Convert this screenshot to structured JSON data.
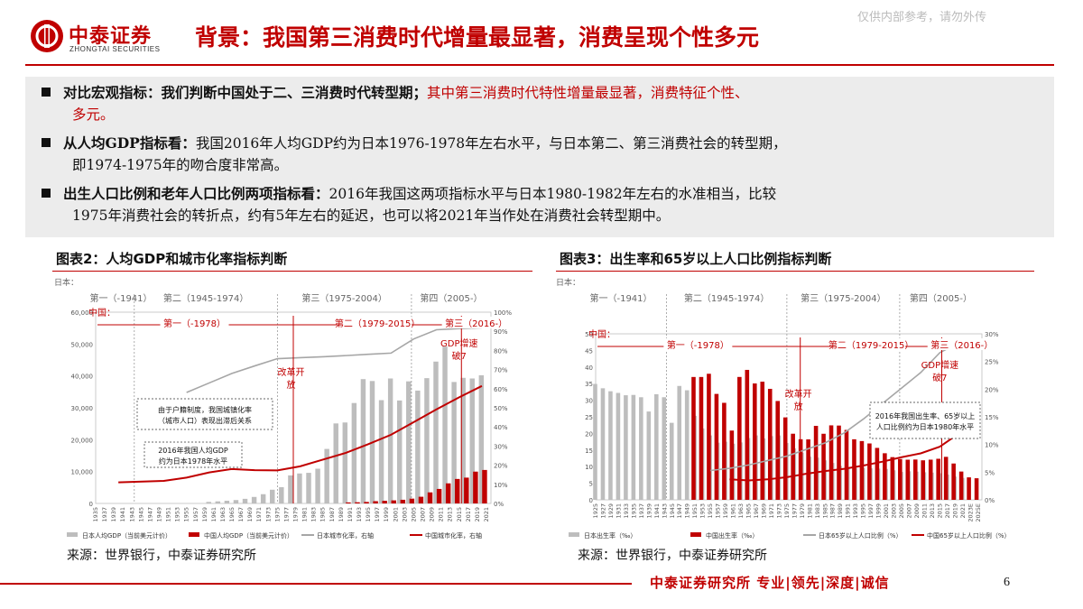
{
  "header": {
    "logo_cn": "中泰证券",
    "logo_en": "ZHONGTAI SECURITIES",
    "title": "背景：我国第三消费时代增量最显著，消费呈现个性多元",
    "watermark": "仅供内部参考，请勿外传"
  },
  "bullets": [
    {
      "bold": "对比宏观指标：我们判断中国处于二、三消费时代转型期；",
      "red": "其中第三消费时代特性增量最显著，消费特征个性、",
      "red2": "多元。"
    },
    {
      "bold": "从人均GDP指标看：",
      "text": "我国2016年人均GDP约为日本1976-1978年左右水平，与日本第二、第三消费社会的转型期，",
      "text2": "即1974-1975年的吻合度非常高。"
    },
    {
      "bold": "出生人口比例和老年人口比例两项指标看：",
      "text": "2016年我国这两项指标水平与日本1980-1982年左右的水准相当，比较",
      "text2": "1975年消费社会的转折点，约有5年左右的延迟，也可以将2021年当作处在消费社会转型期中。"
    }
  ],
  "chart_left_title": "图表2：人均GDP和城市化率指标判断",
  "chart_right_title": "图表3：出生率和65岁以上人口比例指标判断",
  "source_left": "来源：世界银行，中泰证券研究所",
  "source_right": "来源：世界银行，中泰证券研究所",
  "footer": {
    "text": "中泰证券研究所 专业|领先|深度|诚信",
    "page": "6"
  },
  "chart_data": [
    {
      "type": "bar",
      "title": "图表2：人均GDP和城市化率指标判断",
      "japan_label": "日本：",
      "china_label": "中国：",
      "japan_eras": [
        "第一（-1941）",
        "第二（1945-1974）",
        "第三（1975-2004）",
        "第四（2005-）"
      ],
      "china_eras": [
        "第一（-1978）",
        "第二（1979-2015）",
        "第三（2016-）"
      ],
      "annotations": [
        "改革开放",
        "GDP增速破7",
        "由于户籍制度，我国城镇化率（城市人口）表现出滞后关系",
        "2016年我国人均GDP约为日本1978年水平"
      ],
      "y_left": {
        "ticks": [
          "0",
          "10,000",
          "20,000",
          "30,000",
          "40,000",
          "50,000",
          "60,000"
        ],
        "lim": [
          0,
          60000
        ]
      },
      "y_right": {
        "ticks": [
          "0%",
          "10%",
          "20%",
          "30%",
          "40%",
          "50%",
          "60%",
          "70%",
          "80%",
          "90%",
          "100%"
        ],
        "lim": [
          0,
          100
        ]
      },
      "x_ticks": [
        "1935",
        "1937",
        "1939",
        "1941",
        "1943",
        "1945",
        "1947",
        "1949",
        "1951",
        "1953",
        "1955",
        "1957",
        "1959",
        "1961",
        "1963",
        "1965",
        "1967",
        "1969",
        "1971",
        "1973",
        "1975",
        "1977",
        "1979",
        "1981",
        "1983",
        "1985",
        "1987",
        "1989",
        "1991",
        "1993",
        "1995",
        "1997",
        "1999",
        "2001",
        "2003",
        "2005",
        "2007",
        "2009",
        "2011",
        "2013",
        "2015",
        "2017",
        "2019",
        "2021"
      ],
      "x_range": [
        1935,
        2022
      ],
      "series": [
        {
          "name": "日本人均GDP（当前美元计价）",
          "kind": "bar",
          "color": "#bdbdbd",
          "x": [
            1960,
            1962,
            1964,
            1966,
            1968,
            1970,
            1972,
            1974,
            1976,
            1978,
            1980,
            1982,
            1984,
            1986,
            1988,
            1990,
            1992,
            1994,
            1996,
            1998,
            2000,
            2002,
            2004,
            2006,
            2008,
            2010,
            2012,
            2014,
            2016,
            2018,
            2020
          ],
          "values": [
            480,
            650,
            840,
            1060,
            1450,
            2040,
            2900,
            4300,
            5100,
            8800,
            9400,
            9600,
            10900,
            17100,
            25100,
            25400,
            31500,
            39000,
            38400,
            32400,
            39200,
            32300,
            38300,
            35400,
            39300,
            44500,
            49200,
            38100,
            39400,
            39200,
            40200
          ]
        },
        {
          "name": "中国人均GDP（当前美元计价）",
          "kind": "bar",
          "color": "#c00000",
          "x": [
            1990,
            1992,
            1994,
            1996,
            1998,
            2000,
            2002,
            2004,
            2006,
            2008,
            2010,
            2012,
            2014,
            2016,
            2018,
            2020
          ],
          "values": [
            320,
            370,
            470,
            710,
            830,
            960,
            1150,
            1510,
            2100,
            3470,
            4550,
            6300,
            7680,
            8100,
            9980,
            10500
          ]
        },
        {
          "name": "日本城市化率，右轴",
          "kind": "line",
          "color": "#a6a6a6",
          "x": [
            1955,
            1960,
            1965,
            1970,
            1975,
            1980,
            1985,
            1990,
            1995,
            2000,
            2005,
            2010,
            2015,
            2020
          ],
          "values": [
            58,
            63,
            68,
            71.9,
            75.7,
            76.2,
            76.7,
            77.3,
            78,
            78.6,
            86,
            90.8,
            91.4,
            91.8
          ]
        },
        {
          "name": "中国城市化率，右轴",
          "kind": "line",
          "color": "#c00000",
          "x": [
            1940,
            1950,
            1955,
            1960,
            1965,
            1970,
            1975,
            1980,
            1985,
            1990,
            1995,
            2000,
            2005,
            2010,
            2015,
            2020
          ],
          "values": [
            11,
            11.8,
            13.5,
            16.2,
            18,
            17.4,
            17.3,
            19.4,
            22.9,
            26.4,
            31,
            35.9,
            42.5,
            49.2,
            55.5,
            61.4
          ]
        }
      ]
    },
    {
      "type": "bar",
      "title": "图表3：出生率和65岁以上人口比例指标判断",
      "japan_label": "日本：",
      "china_label": "中国：",
      "japan_eras": [
        "第一（-1941）",
        "第二（1945-1974）",
        "第三（1975-2004）",
        "第四（2005-）"
      ],
      "china_eras": [
        "第一（-1978）",
        "第二（1979-2015）",
        "第三（2016-）"
      ],
      "annotations": [
        "改革开放",
        "GDP增速破7",
        "2016年我国出生率、65岁以上人口比例约为日本1980年水平"
      ],
      "y_left": {
        "ticks": [
          "0",
          "5",
          "10",
          "15",
          "20",
          "25",
          "30",
          "35",
          "40",
          "45",
          "50"
        ],
        "lim": [
          0,
          50
        ]
      },
      "y_right": {
        "ticks": [
          "0%",
          "5%",
          "10%",
          "15%",
          "20%",
          "25%",
          "30%"
        ],
        "lim": [
          0,
          30
        ]
      },
      "x_ticks": [
        "1925",
        "1927",
        "1929",
        "1931",
        "1933",
        "1935",
        "1937",
        "1939",
        "1941",
        "1943",
        "1945",
        "1947",
        "1949",
        "1951",
        "1953",
        "1955",
        "1957",
        "1959",
        "1961",
        "1963",
        "1965",
        "1967",
        "1969",
        "1971",
        "1973",
        "1975",
        "1977",
        "1979",
        "1981",
        "1983",
        "1985",
        "1987",
        "1989",
        "1991",
        "1993",
        "1995",
        "1997",
        "1999",
        "2001",
        "2003",
        "2005",
        "2007",
        "2009",
        "2011",
        "2013",
        "2015",
        "2017",
        "2019",
        "2021",
        "2023E",
        "2025E"
      ],
      "x_range": [
        1925,
        2026
      ],
      "series": [
        {
          "name": "日本出生率（‰）",
          "kind": "bar",
          "color": "#bdbdbd",
          "x": [
            1925,
            1927,
            1929,
            1931,
            1933,
            1935,
            1937,
            1939,
            1941,
            1943,
            1945,
            1947,
            1949,
            1951,
            1953,
            1955,
            1957,
            1959,
            1961,
            1963,
            1965,
            1967,
            1969,
            1971,
            1973,
            1975,
            1977,
            1979,
            1981,
            1983,
            1985,
            1987,
            1989,
            1991,
            1993,
            1995,
            1997,
            1999,
            2001,
            2003,
            2005,
            2007,
            2009,
            2011,
            2013,
            2015,
            2017,
            2019,
            2021
          ],
          "values": [
            34.9,
            33.6,
            32.7,
            32.2,
            31.5,
            31.6,
            30.9,
            26.6,
            31.8,
            30.9,
            23.2,
            34.3,
            33,
            25.3,
            21.5,
            19.4,
            17.2,
            17.5,
            16.9,
            17.3,
            18.6,
            19.4,
            18.5,
            19.2,
            19.4,
            17.1,
            15.5,
            14.2,
            13,
            12.7,
            11.9,
            11.1,
            10.2,
            9.9,
            9.6,
            9.6,
            9.5,
            9.4,
            9.3,
            8.9,
            8.4,
            8.6,
            8.5,
            8.3,
            8.2,
            8,
            7.6,
            7,
            6.6
          ]
        },
        {
          "name": "中国出生率（‰）",
          "kind": "bar",
          "color": "#c00000",
          "x": [
            1950,
            1952,
            1954,
            1956,
            1958,
            1960,
            1962,
            1964,
            1966,
            1968,
            1970,
            1972,
            1974,
            1976,
            1978,
            1980,
            1982,
            1984,
            1986,
            1988,
            1990,
            1992,
            1994,
            1996,
            1998,
            2000,
            2002,
            2004,
            2006,
            2008,
            2010,
            2012,
            2014,
            2016,
            2018,
            2020,
            2022,
            2024
          ],
          "values": [
            37,
            37,
            37.97,
            31.9,
            29.22,
            20.86,
            37.01,
            39.14,
            35.05,
            35.59,
            33.43,
            29.77,
            24.82,
            19.91,
            18.25,
            18.21,
            22.28,
            19.9,
            22.43,
            22.37,
            21.06,
            18.24,
            17.7,
            16.98,
            15.64,
            14.03,
            12.86,
            12.29,
            12.09,
            12.14,
            11.9,
            12.1,
            12.37,
            12.95,
            10.94,
            8.52,
            6.77,
            6.5
          ]
        },
        {
          "name": "日本65岁以上人口比例（%）",
          "kind": "line",
          "color": "#a6a6a6",
          "x": [
            1955,
            1960,
            1965,
            1970,
            1975,
            1980,
            1985,
            1990,
            1995,
            2000,
            2005,
            2010,
            2015,
            2020
          ],
          "values": [
            5.3,
            5.7,
            6.3,
            7.1,
            7.9,
            9.1,
            10.3,
            12.1,
            14.6,
            17.4,
            20.2,
            23,
            26.6,
            28.4
          ]
        },
        {
          "name": "中国65岁以上人口比例（%）",
          "kind": "line",
          "color": "#c00000",
          "x": [
            1960,
            1965,
            1970,
            1975,
            1980,
            1985,
            1990,
            1995,
            2000,
            2005,
            2010,
            2015,
            2020
          ],
          "values": [
            3.7,
            3.5,
            3.7,
            4.1,
            4.7,
            5.2,
            5.6,
            6.2,
            6.9,
            7.7,
            8.4,
            9.6,
            12
          ]
        }
      ]
    }
  ]
}
